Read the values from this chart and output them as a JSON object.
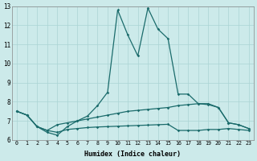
{
  "xlabel": "Humidex (Indice chaleur)",
  "bg_color": "#cceaea",
  "line_color": "#1a6b6b",
  "grid_color": "#aad4d4",
  "xlim": [
    -0.5,
    23.5
  ],
  "ylim": [
    6,
    13
  ],
  "xticks": [
    0,
    1,
    2,
    3,
    4,
    5,
    6,
    7,
    8,
    9,
    10,
    11,
    12,
    13,
    14,
    15,
    16,
    17,
    18,
    19,
    20,
    21,
    22,
    23
  ],
  "yticks": [
    6,
    7,
    8,
    9,
    10,
    11,
    12,
    13
  ],
  "line1_x": [
    0,
    1,
    2,
    3,
    4,
    5,
    6,
    7,
    8,
    9,
    10,
    11,
    12,
    13,
    14,
    15,
    16,
    17,
    18,
    19,
    20,
    21,
    22,
    23
  ],
  "line1_y": [
    7.5,
    7.3,
    6.7,
    6.4,
    6.25,
    6.7,
    7.0,
    7.25,
    7.8,
    8.5,
    12.8,
    11.5,
    10.4,
    12.9,
    11.8,
    11.3,
    8.4,
    8.4,
    7.9,
    7.9,
    7.7,
    6.9,
    6.8,
    6.6
  ],
  "line2_x": [
    0,
    1,
    2,
    3,
    4,
    5,
    6,
    7,
    8,
    9,
    10,
    11,
    12,
    13,
    14,
    15,
    16,
    17,
    18,
    19,
    20,
    21,
    22,
    23
  ],
  "line2_y": [
    7.5,
    7.3,
    6.7,
    6.5,
    6.8,
    6.9,
    7.0,
    7.1,
    7.2,
    7.3,
    7.4,
    7.5,
    7.55,
    7.6,
    7.65,
    7.7,
    7.8,
    7.85,
    7.9,
    7.85,
    7.7,
    6.9,
    6.8,
    6.6
  ],
  "line3_x": [
    0,
    1,
    2,
    3,
    4,
    5,
    6,
    7,
    8,
    9,
    10,
    11,
    12,
    13,
    14,
    15,
    16,
    17,
    18,
    19,
    20,
    21,
    22,
    23
  ],
  "line3_y": [
    7.5,
    7.3,
    6.7,
    6.5,
    6.4,
    6.55,
    6.6,
    6.65,
    6.68,
    6.7,
    6.72,
    6.74,
    6.76,
    6.78,
    6.8,
    6.82,
    6.5,
    6.5,
    6.5,
    6.55,
    6.55,
    6.6,
    6.55,
    6.5
  ]
}
